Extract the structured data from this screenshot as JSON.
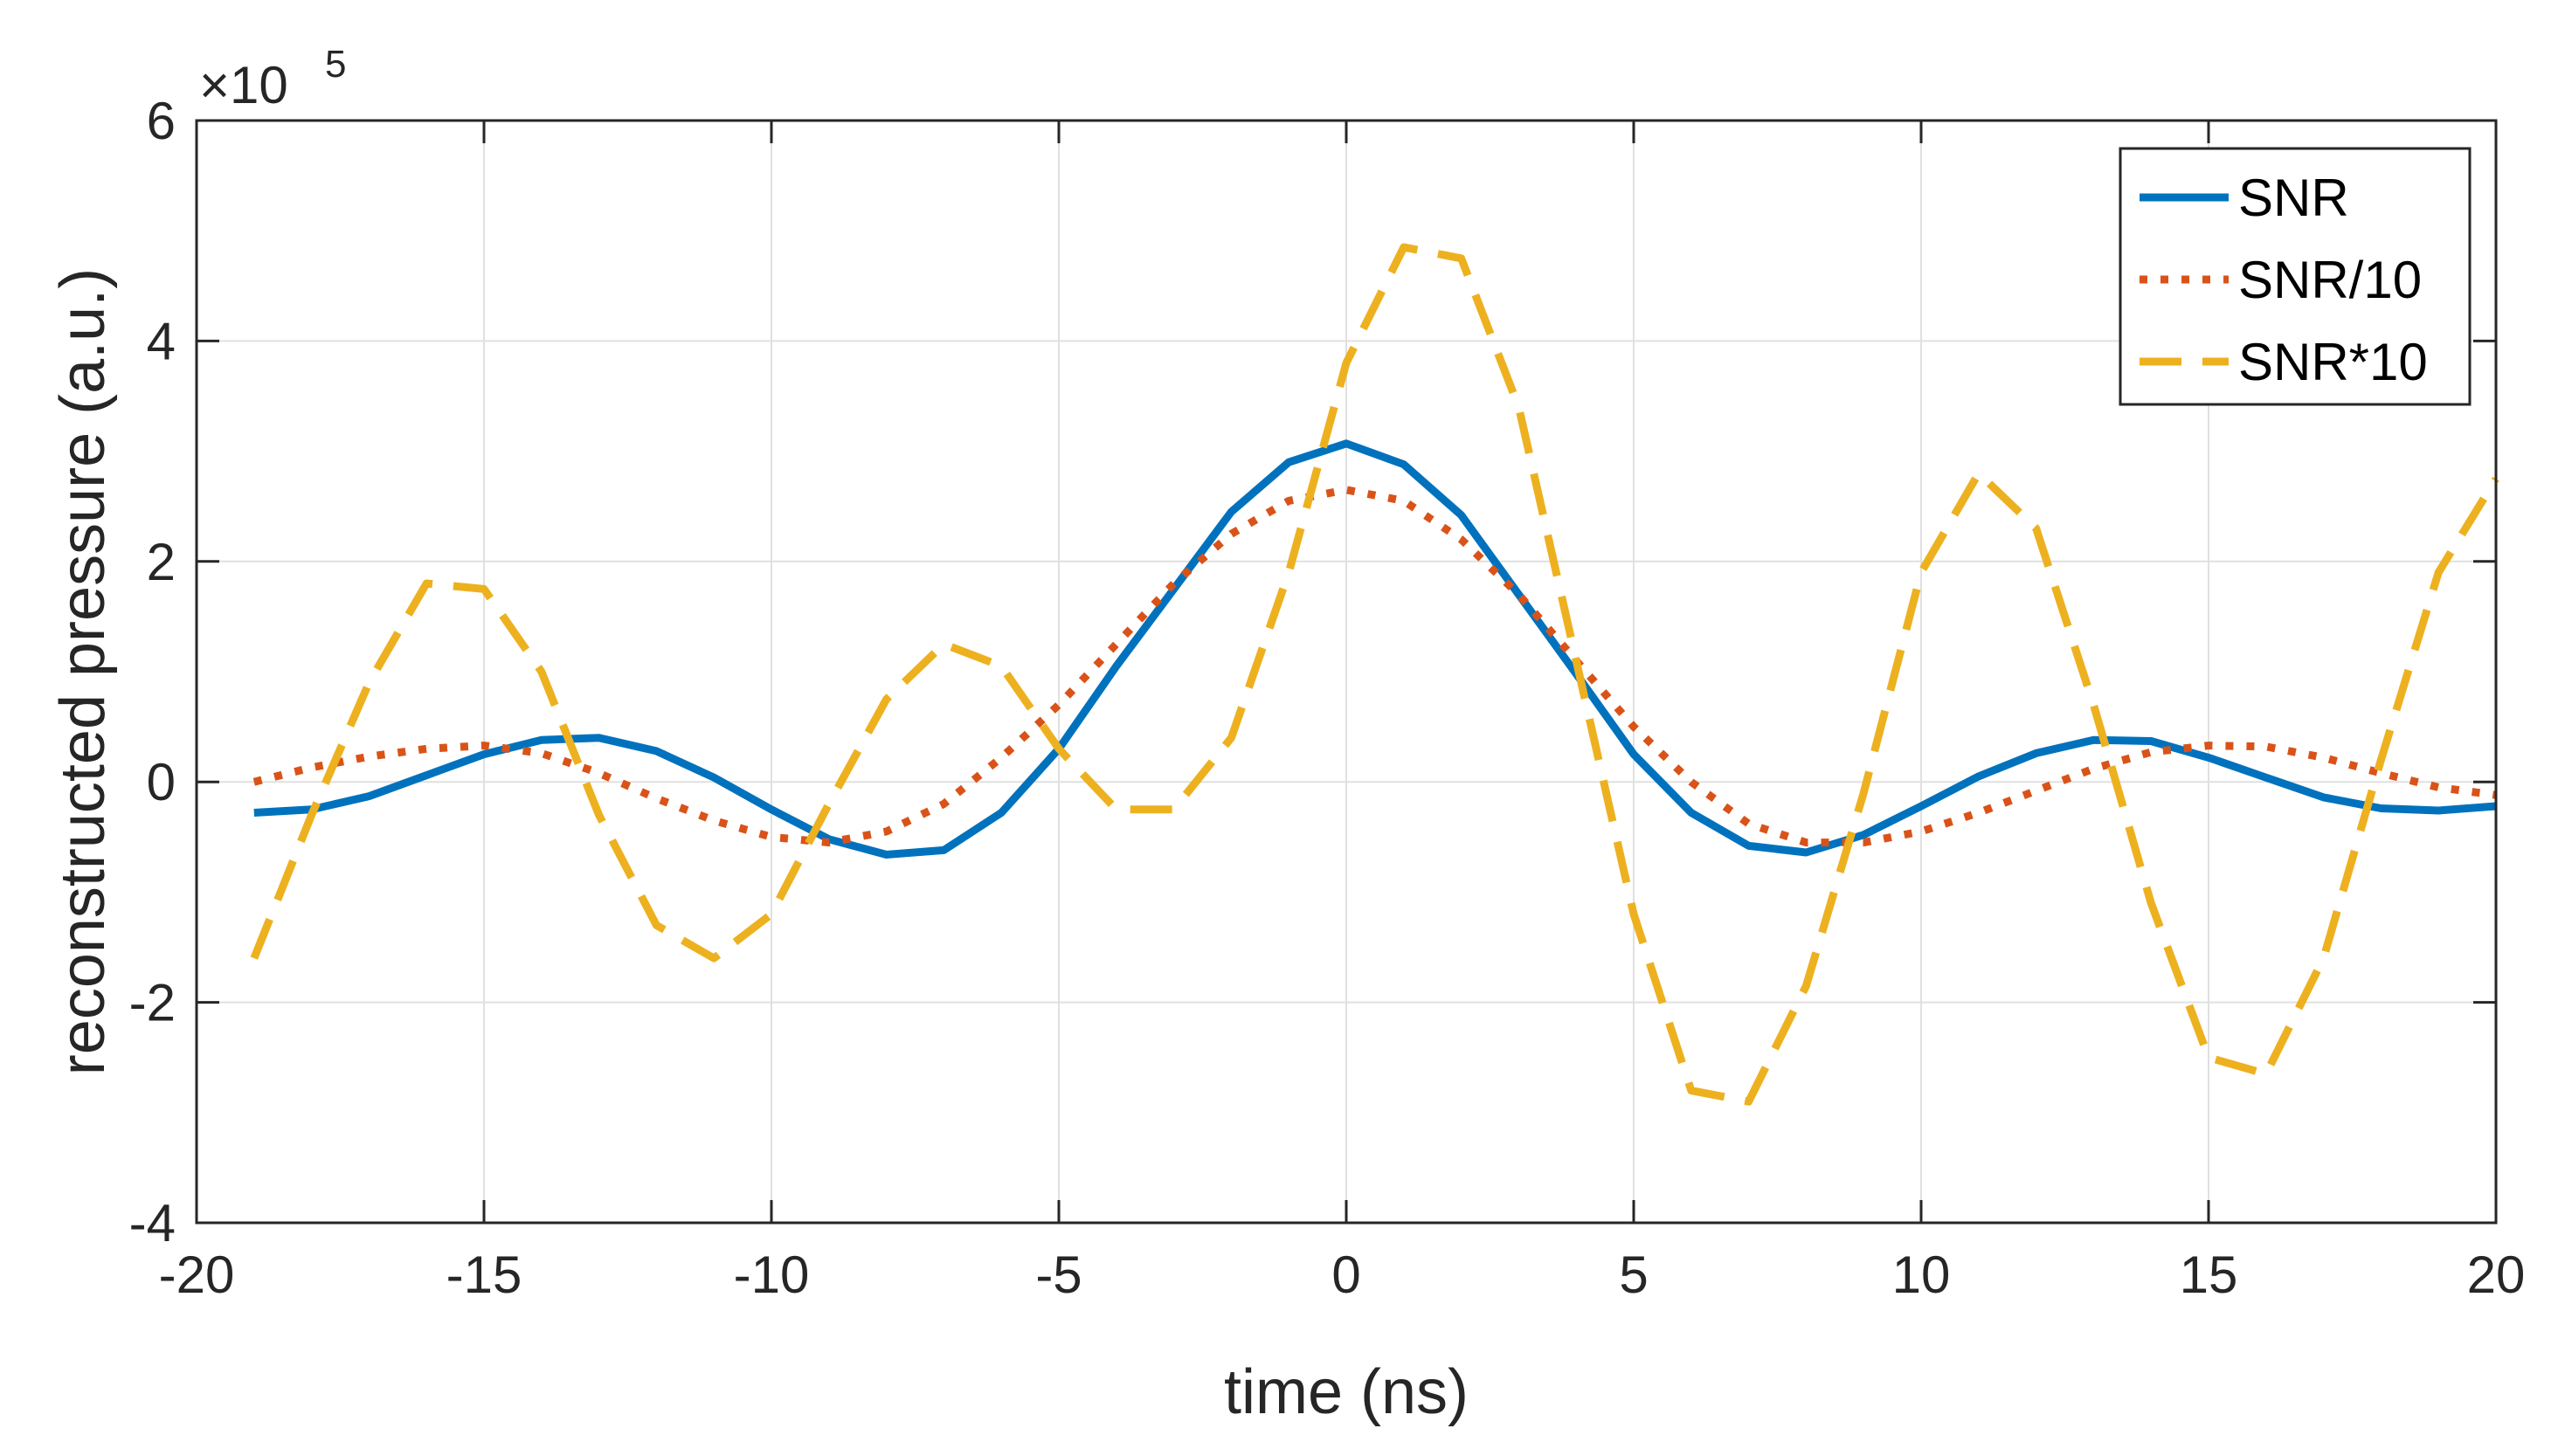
{
  "chart_data": {
    "type": "line",
    "title": "",
    "xlabel": "time (ns)",
    "ylabel": "reconstructed pressure (a.u.)",
    "y_exponent_label": "×10",
    "y_exponent_power": "5",
    "xlim": [
      -20,
      20
    ],
    "ylim": [
      -4,
      6
    ],
    "xticks": [
      -20,
      -15,
      -10,
      -5,
      0,
      5,
      10,
      15,
      20
    ],
    "yticks": [
      -4,
      -2,
      0,
      2,
      4,
      6
    ],
    "xtick_labels": [
      "-20",
      "-15",
      "-10",
      "-5",
      "0",
      "5",
      "10",
      "15",
      "20"
    ],
    "ytick_labels": [
      "-4",
      "-2",
      "0",
      "2",
      "4",
      "6"
    ],
    "grid": true,
    "legend_position": "top-right",
    "series": [
      {
        "name": "SNR",
        "color": "#0072BD",
        "style": "solid",
        "x": [
          -19,
          -18,
          -17,
          -16,
          -15,
          -14,
          -13,
          -12,
          -11,
          -10,
          -9,
          -8,
          -7,
          -6,
          -5,
          -4,
          -3,
          -2,
          -1,
          0,
          1,
          2,
          3,
          4,
          5,
          6,
          7,
          8,
          9,
          10,
          11,
          12,
          13,
          14,
          15,
          16,
          17,
          18,
          19,
          20
        ],
        "values": [
          -0.28,
          -0.25,
          -0.13,
          0.06,
          0.25,
          0.38,
          0.4,
          0.28,
          0.04,
          -0.25,
          -0.52,
          -0.66,
          -0.62,
          -0.28,
          0.3,
          1.05,
          1.75,
          2.45,
          2.9,
          3.07,
          2.88,
          2.42,
          1.7,
          0.98,
          0.25,
          -0.28,
          -0.58,
          -0.64,
          -0.48,
          -0.22,
          0.05,
          0.26,
          0.38,
          0.37,
          0.22,
          0.04,
          -0.14,
          -0.24,
          -0.26,
          -0.22
        ]
      },
      {
        "name": "SNR/10",
        "color": "#D95319",
        "style": "dotted",
        "x": [
          -19,
          -18,
          -17,
          -16,
          -15,
          -14,
          -13,
          -12,
          -11,
          -10,
          -9,
          -8,
          -7,
          -6,
          -5,
          -4,
          -3,
          -2,
          -1,
          0,
          1,
          2,
          3,
          4,
          5,
          6,
          7,
          8,
          9,
          10,
          11,
          12,
          13,
          14,
          15,
          16,
          17,
          18,
          19,
          20
        ],
        "values": [
          0.0,
          0.13,
          0.23,
          0.3,
          0.33,
          0.26,
          0.08,
          -0.15,
          -0.35,
          -0.5,
          -0.55,
          -0.45,
          -0.2,
          0.22,
          0.7,
          1.25,
          1.8,
          2.25,
          2.55,
          2.65,
          2.55,
          2.2,
          1.7,
          1.1,
          0.5,
          0.0,
          -0.38,
          -0.55,
          -0.55,
          -0.45,
          -0.28,
          -0.08,
          0.12,
          0.27,
          0.33,
          0.32,
          0.22,
          0.08,
          -0.05,
          -0.12
        ]
      },
      {
        "name": "SNR*10",
        "color": "#EDB120",
        "style": "dashed",
        "x": [
          -19,
          -18,
          -17,
          -16,
          -15,
          -14,
          -13,
          -12,
          -11,
          -10,
          -9,
          -8,
          -7,
          -6,
          -5,
          -4,
          -3,
          -2,
          -1,
          0,
          1,
          2,
          3,
          4,
          5,
          6,
          7,
          8,
          9,
          10,
          11,
          12,
          13,
          14,
          15,
          16,
          17,
          18,
          19,
          20
        ],
        "values": [
          -1.6,
          -0.3,
          0.9,
          1.8,
          1.75,
          1.0,
          -0.3,
          -1.3,
          -1.6,
          -1.2,
          -0.2,
          0.75,
          1.25,
          1.05,
          0.3,
          -0.25,
          -0.25,
          0.4,
          1.9,
          3.8,
          4.85,
          4.75,
          3.4,
          1.1,
          -1.2,
          -2.8,
          -2.9,
          -1.85,
          -0.1,
          1.9,
          2.8,
          2.3,
          0.7,
          -1.1,
          -2.5,
          -2.65,
          -1.6,
          0.2,
          1.9,
          2.75
        ]
      }
    ]
  }
}
